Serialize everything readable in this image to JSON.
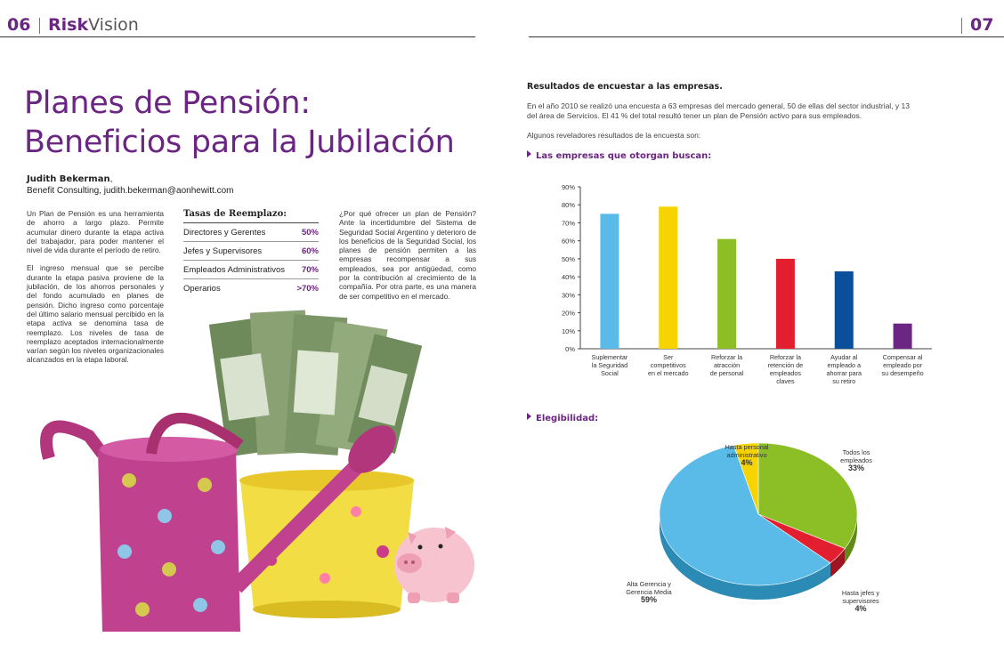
{
  "header": {
    "left_page_number": "06",
    "brand_bold": "Risk",
    "brand_rest": "Vision",
    "right_page_number": "07"
  },
  "article": {
    "title_line1": "Planes de Pensión:",
    "title_line2": "Beneficios para la Jubilación",
    "author_name": "Judith Bekerman",
    "author_affiliation": "Benefit Consulting, judith.bekerman@aonhewitt.com",
    "paragraph1": "Un Plan de Pensión es una herramienta de ahorro a largo plazo. Permite acumular dinero durante la etapa activa del trabajador, para poder mantener el nivel de vida durante el período de retiro.",
    "paragraph2": "El ingreso mensual que se percibe durante la etapa pasiva proviene de la jubilación, de los ahorros personales y del fondo acumulado en planes de pensión. Dicho ingreso como porcentaje del último salario mensual percibido en la etapa activa se denomina tasa de reemplazo. Los niveles de tasa de reemplazo aceptados internacionalmente varían según los niveles organizacionales alcanzados en la etapa laboral.",
    "paragraph3": "¿Por qué ofrecer un plan de Pensión? Ante la incertidumbre del Sistema de Seguridad Social Argentino y deterioro de los beneficios de la Seguridad Social, los planes de pensión permiten a las empresas recompensar a sus empleados, sea por antigüedad, como por la contribución al crecimiento de la compañía. Por otra parte, es una manera de ser competitivo en el mercado."
  },
  "tasas": {
    "heading": "Tasas de Reemplazo:",
    "rows": [
      {
        "label": "Directores y Gerentes",
        "value": "50%"
      },
      {
        "label": "Jefes y Supervisores",
        "value": "60%"
      },
      {
        "label": "Empleados Administrativos",
        "value": "70%"
      },
      {
        "label": "Operarios",
        "value": ">70%"
      }
    ]
  },
  "results": {
    "heading": "Resultados de encuestar a las empresas.",
    "intro": "En el año 2010 se realizó una encuesta a 63 empresas del mercado general, 50 de ellas del sector industrial, y 13 del área de Servicios. El 41 % del total resultó tener un plan de Pensión activo para sus empleados.",
    "lead": "Algunos reveladores resultados de la encuesta son:",
    "bar_heading": "Las empresas que otorgan buscan:",
    "pie_heading": "Elegibilidad:"
  },
  "chart_data": [
    {
      "type": "bar",
      "title": "Las empresas que otorgan buscan:",
      "categories": [
        [
          "Suplementar",
          "la Seguridad",
          "Social"
        ],
        [
          "Ser",
          "competitivos",
          "en el mercado"
        ],
        [
          "Reforzar la",
          "atracción",
          "de personal"
        ],
        [
          "Reforzar la",
          "retención de",
          "empleados",
          "claves"
        ],
        [
          "Ayudar al",
          "empleado a",
          "ahorrar para",
          "su retiro"
        ],
        [
          "Compensar al",
          "empleado por",
          "su desempeño"
        ]
      ],
      "values": [
        75,
        79,
        61,
        50,
        43,
        14
      ],
      "colors": [
        "#5bbbe8",
        "#f7d400",
        "#8cbf26",
        "#e31e2f",
        "#0a4f9b",
        "#6b2582"
      ],
      "ylim": [
        0,
        90
      ],
      "yticks": [
        "0%",
        "10%",
        "20%",
        "30%",
        "40%",
        "50%",
        "60%",
        "70%",
        "80%",
        "90%"
      ],
      "grid": false
    },
    {
      "type": "pie",
      "title": "Elegibilidad:",
      "slices": [
        {
          "label": "Todos los empleados",
          "label_lines": [
            "Todos los",
            "empleados"
          ],
          "pct_label": "33%",
          "value": 33,
          "color": "#8cbf26",
          "side": "#5f8a16"
        },
        {
          "label": "Hasta jefes y supervisores",
          "label_lines": [
            "Hasta jefes y",
            "supervisores"
          ],
          "pct_label": "4%",
          "value": 4,
          "color": "#e31e2f",
          "side": "#9e1420"
        },
        {
          "label": "Alta Gerencia y Gerencia Media",
          "label_lines": [
            "Alta Gerencia y",
            "Gerencia Media"
          ],
          "pct_label": "59%",
          "value": 59,
          "color": "#5bbbe8",
          "side": "#2b8bb5"
        },
        {
          "label": "Hasta personal administrativo",
          "label_lines": [
            "Hasta personal",
            "administrativo"
          ],
          "pct_label": "4%",
          "value": 4,
          "color": "#f7d400",
          "side": "#b89f00"
        }
      ]
    }
  ]
}
